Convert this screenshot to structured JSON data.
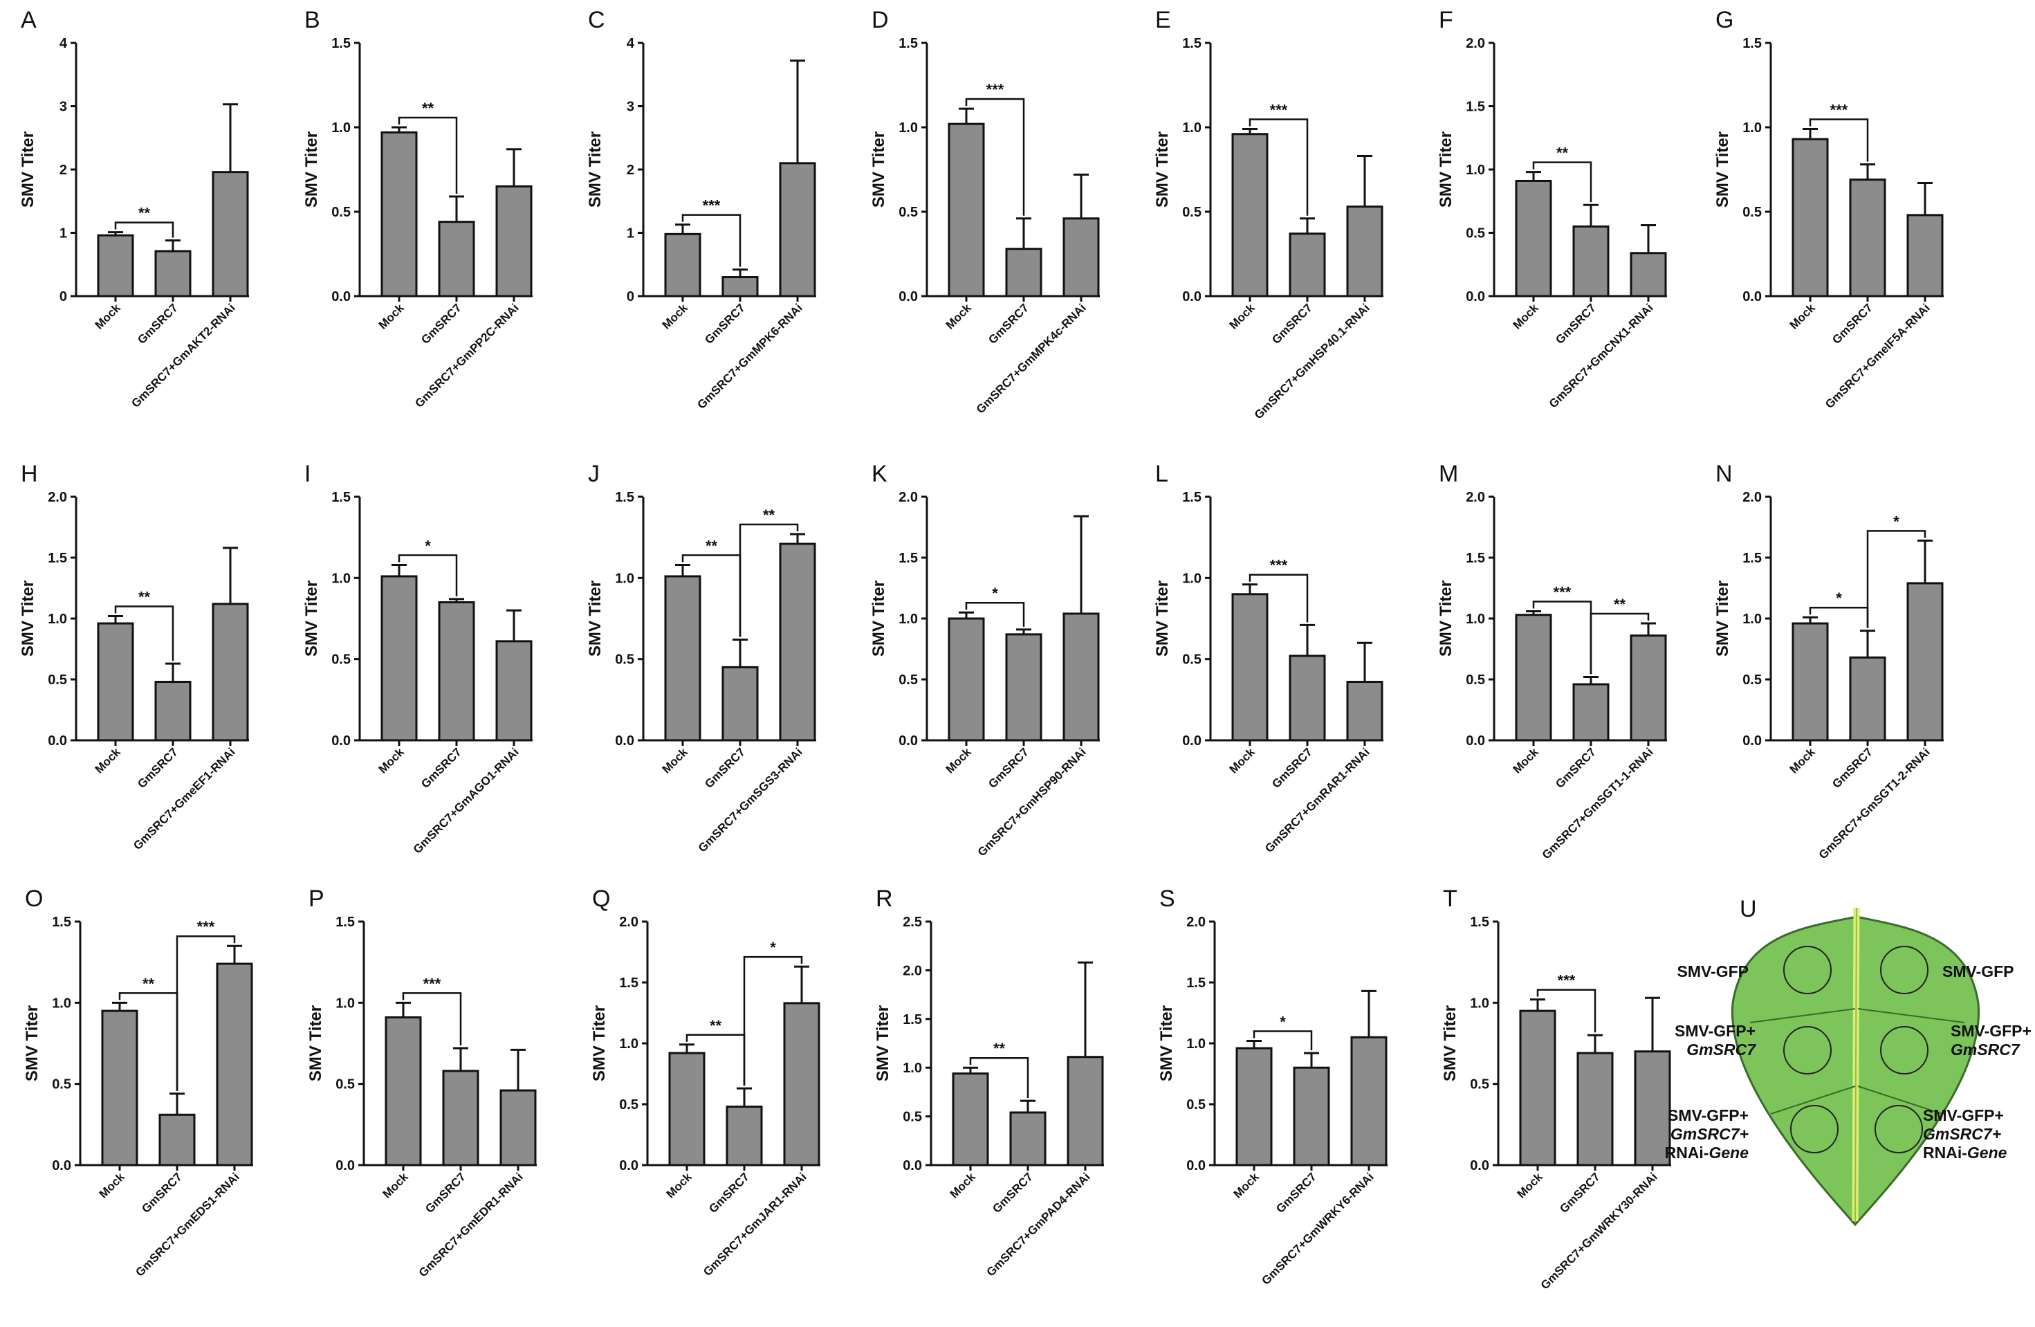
{
  "figure": {
    "bar_color": "#8c8c8c",
    "leaf_color": "#7dc45a",
    "leaf_vein_color": "#d8f070",
    "leaf_outline_color": "#3a6b2a"
  },
  "chart_data": [
    {
      "panel": "A",
      "type": "bar",
      "ylabel": "SMV Titer",
      "ylim": [
        0,
        4
      ],
      "yticks": [
        "0",
        "1",
        "2",
        "3",
        "4"
      ],
      "categories": [
        "Mock",
        "GmSRC7",
        "GmSRC7+GmAKT2-RNAi"
      ],
      "values": [
        0.96,
        0.71,
        1.96
      ],
      "errors": [
        0.05,
        0.17,
        1.07
      ],
      "significance": [
        {
          "from": 0,
          "to": 1,
          "label": "**"
        }
      ]
    },
    {
      "panel": "B",
      "type": "bar",
      "ylabel": "SMV Titer",
      "ylim": [
        0,
        1.5
      ],
      "yticks": [
        "0.0",
        "0.5",
        "1.0",
        "1.5"
      ],
      "categories": [
        "Mock",
        "GmSRC7",
        "GmSRC7+GmPP2C-RNAi"
      ],
      "values": [
        0.97,
        0.44,
        0.65
      ],
      "errors": [
        0.03,
        0.15,
        0.22
      ],
      "significance": [
        {
          "from": 0,
          "to": 1,
          "label": "**"
        }
      ]
    },
    {
      "panel": "C",
      "type": "bar",
      "ylabel": "SMV Titer",
      "ylim": [
        0,
        4
      ],
      "yticks": [
        "0",
        "1",
        "2",
        "3",
        "4"
      ],
      "categories": [
        "Mock",
        "GmSRC7",
        "GmSRC7+GmMPK6-RNAi"
      ],
      "values": [
        0.98,
        0.3,
        2.1
      ],
      "errors": [
        0.15,
        0.12,
        1.62
      ],
      "significance": [
        {
          "from": 0,
          "to": 1,
          "label": "***"
        }
      ]
    },
    {
      "panel": "D",
      "type": "bar",
      "ylabel": "SMV Titer",
      "ylim": [
        0,
        1.5
      ],
      "yticks": [
        "0.0",
        "0.5",
        "1.0",
        "1.5"
      ],
      "categories": [
        "Mock",
        "GmSRC7",
        "GmSRC7+GmMPK4c-RNAi"
      ],
      "values": [
        1.02,
        0.28,
        0.46
      ],
      "errors": [
        0.09,
        0.18,
        0.26
      ],
      "significance": [
        {
          "from": 0,
          "to": 1,
          "label": "***"
        }
      ]
    },
    {
      "panel": "E",
      "type": "bar",
      "ylabel": "SMV Titer",
      "ylim": [
        0,
        1.5
      ],
      "yticks": [
        "0.0",
        "0.5",
        "1.0",
        "1.5"
      ],
      "categories": [
        "Mock",
        "GmSRC7",
        "GmSRC7+GmHSP40.1-RNAi"
      ],
      "values": [
        0.96,
        0.37,
        0.53
      ],
      "errors": [
        0.03,
        0.09,
        0.3
      ],
      "significance": [
        {
          "from": 0,
          "to": 1,
          "label": "***"
        }
      ]
    },
    {
      "panel": "F",
      "type": "bar",
      "ylabel": "SMV Titer",
      "ylim": [
        0,
        2
      ],
      "yticks": [
        "0.0",
        "0.5",
        "1.0",
        "1.5",
        "2.0"
      ],
      "categories": [
        "Mock",
        "GmSRC7",
        "GmSRC7+GmCNX1-RNAi"
      ],
      "values": [
        0.91,
        0.55,
        0.34
      ],
      "errors": [
        0.07,
        0.17,
        0.22
      ],
      "significance": [
        {
          "from": 0,
          "to": 1,
          "label": "**"
        }
      ]
    },
    {
      "panel": "G",
      "type": "bar",
      "ylabel": "SMV Titer",
      "ylim": [
        0,
        1.5
      ],
      "yticks": [
        "0.0",
        "0.5",
        "1.0",
        "1.5"
      ],
      "categories": [
        "Mock",
        "GmSRC7",
        "GmSRC7+GmeIF5A-RNAi"
      ],
      "values": [
        0.93,
        0.69,
        0.48
      ],
      "errors": [
        0.06,
        0.09,
        0.19
      ],
      "significance": [
        {
          "from": 0,
          "to": 1,
          "label": "***"
        }
      ]
    },
    {
      "panel": "H",
      "type": "bar",
      "ylabel": "SMV Titer",
      "ylim": [
        0,
        2
      ],
      "yticks": [
        "0.0",
        "0.5",
        "1.0",
        "1.5",
        "2.0"
      ],
      "categories": [
        "Mock",
        "GmSRC7",
        "GmSRC7+GmeEF1-RNAi"
      ],
      "values": [
        0.96,
        0.48,
        1.12
      ],
      "errors": [
        0.06,
        0.15,
        0.46
      ],
      "significance": [
        {
          "from": 0,
          "to": 1,
          "label": "**"
        }
      ]
    },
    {
      "panel": "I",
      "type": "bar",
      "ylabel": "SMV Titer",
      "ylim": [
        0,
        1.5
      ],
      "yticks": [
        "0.0",
        "0.5",
        "1.0",
        "1.5"
      ],
      "categories": [
        "Mock",
        "GmSRC7",
        "GmSRC7+GmAGO1-RNAi"
      ],
      "values": [
        1.01,
        0.85,
        0.61
      ],
      "errors": [
        0.07,
        0.02,
        0.19
      ],
      "significance": [
        {
          "from": 0,
          "to": 1,
          "label": "*"
        }
      ]
    },
    {
      "panel": "J",
      "type": "bar",
      "ylabel": "SMV Titer",
      "ylim": [
        0,
        1.5
      ],
      "yticks": [
        "0.0",
        "0.5",
        "1.0",
        "1.5"
      ],
      "categories": [
        "Mock",
        "GmSRC7",
        "GmSRC7+GmSGS3-RNAi"
      ],
      "values": [
        1.01,
        0.45,
        1.21
      ],
      "errors": [
        0.07,
        0.17,
        0.06
      ],
      "significance": [
        {
          "from": 0,
          "to": 1,
          "label": "**"
        },
        {
          "from": 1,
          "to": 2,
          "label": "**"
        }
      ]
    },
    {
      "panel": "K",
      "type": "bar",
      "ylabel": "SMV Titer",
      "ylim": [
        0,
        2
      ],
      "yticks": [
        "0.0",
        "0.5",
        "1.0",
        "1.5",
        "2.0"
      ],
      "categories": [
        "Mock",
        "GmSRC7",
        "GmSRC7+GmHSP90-RNAi"
      ],
      "values": [
        1.0,
        0.87,
        1.04
      ],
      "errors": [
        0.05,
        0.04,
        0.8
      ],
      "significance": [
        {
          "from": 0,
          "to": 1,
          "label": "*"
        }
      ]
    },
    {
      "panel": "L",
      "type": "bar",
      "ylabel": "SMV Titer",
      "ylim": [
        0,
        1.5
      ],
      "yticks": [
        "0.0",
        "0.5",
        "1.0",
        "1.5"
      ],
      "categories": [
        "Mock",
        "GmSRC7",
        "GmSRC7+GmRAR1-RNAi"
      ],
      "values": [
        0.9,
        0.52,
        0.36
      ],
      "errors": [
        0.06,
        0.19,
        0.24
      ],
      "significance": [
        {
          "from": 0,
          "to": 1,
          "label": "***"
        }
      ]
    },
    {
      "panel": "M",
      "type": "bar",
      "ylabel": "SMV Titer",
      "ylim": [
        0,
        2
      ],
      "yticks": [
        "0.0",
        "0.5",
        "1.0",
        "1.5",
        "2.0"
      ],
      "categories": [
        "Mock",
        "GmSRC7",
        "GmSRC7+GmSGT1-1-RNAi"
      ],
      "values": [
        1.03,
        0.46,
        0.86
      ],
      "errors": [
        0.03,
        0.06,
        0.1
      ],
      "significance": [
        {
          "from": 0,
          "to": 1,
          "label": "***"
        },
        {
          "from": 1,
          "to": 2,
          "label": "**"
        }
      ]
    },
    {
      "panel": "N",
      "type": "bar",
      "ylabel": "SMV Titer",
      "ylim": [
        0,
        2
      ],
      "yticks": [
        "0.0",
        "0.5",
        "1.0",
        "1.5",
        "2.0"
      ],
      "categories": [
        "Mock",
        "GmSRC7",
        "GmSRC7+GmSGT1-2-RNAi"
      ],
      "values": [
        0.96,
        0.68,
        1.29
      ],
      "errors": [
        0.05,
        0.22,
        0.35
      ],
      "significance": [
        {
          "from": 0,
          "to": 1,
          "label": "*"
        },
        {
          "from": 1,
          "to": 2,
          "label": "*"
        }
      ]
    },
    {
      "panel": "O",
      "type": "bar",
      "ylabel": "SMV Titer",
      "ylim": [
        0,
        1.5
      ],
      "yticks": [
        "0.0",
        "0.5",
        "1.0",
        "1.5"
      ],
      "categories": [
        "Mock",
        "GmSRC7",
        "GmSRC7+GmEDS1-RNAi"
      ],
      "values": [
        0.95,
        0.31,
        1.24
      ],
      "errors": [
        0.05,
        0.13,
        0.11
      ],
      "significance": [
        {
          "from": 0,
          "to": 1,
          "label": "**"
        },
        {
          "from": 1,
          "to": 2,
          "label": "***"
        }
      ]
    },
    {
      "panel": "P",
      "type": "bar",
      "ylabel": "SMV Titer",
      "ylim": [
        0,
        1.5
      ],
      "yticks": [
        "0.0",
        "0.5",
        "1.0",
        "1.5"
      ],
      "categories": [
        "Mock",
        "GmSRC7",
        "GmSRC7+GmEDR1-RNAi"
      ],
      "values": [
        0.91,
        0.58,
        0.46
      ],
      "errors": [
        0.09,
        0.14,
        0.25
      ],
      "significance": [
        {
          "from": 0,
          "to": 1,
          "label": "***"
        }
      ]
    },
    {
      "panel": "Q",
      "type": "bar",
      "ylabel": "SMV Titer",
      "ylim": [
        0,
        2
      ],
      "yticks": [
        "0.0",
        "0.5",
        "1.0",
        "1.5",
        "2.0"
      ],
      "categories": [
        "Mock",
        "GmSRC7",
        "GmSRC7+GmJAR1-RNAi"
      ],
      "values": [
        0.92,
        0.48,
        1.33
      ],
      "errors": [
        0.07,
        0.15,
        0.3
      ],
      "significance": [
        {
          "from": 0,
          "to": 1,
          "label": "**"
        },
        {
          "from": 1,
          "to": 2,
          "label": "*"
        }
      ]
    },
    {
      "panel": "R",
      "type": "bar",
      "ylabel": "SMV Titer",
      "ylim": [
        0,
        2.5
      ],
      "yticks": [
        "0.0",
        "0.5",
        "1.0",
        "1.5",
        "2.0",
        "2.5"
      ],
      "categories": [
        "Mock",
        "GmSRC7",
        "GmSRC7+GmPAD4-RNAi"
      ],
      "values": [
        0.94,
        0.54,
        1.11
      ],
      "errors": [
        0.06,
        0.12,
        0.97
      ],
      "significance": [
        {
          "from": 0,
          "to": 1,
          "label": "**"
        }
      ]
    },
    {
      "panel": "S",
      "type": "bar",
      "ylabel": "SMV Titer",
      "ylim": [
        0,
        2
      ],
      "yticks": [
        "0.0",
        "0.5",
        "1.0",
        "1.5",
        "2.0"
      ],
      "categories": [
        "Mock",
        "GmSRC7",
        "GmSRC7+GmWRKY6-RNAi"
      ],
      "values": [
        0.96,
        0.8,
        1.05
      ],
      "errors": [
        0.06,
        0.12,
        0.38
      ],
      "significance": [
        {
          "from": 0,
          "to": 1,
          "label": "*"
        }
      ]
    },
    {
      "panel": "T",
      "type": "bar",
      "ylabel": "SMV Titer",
      "ylim": [
        0,
        1.5
      ],
      "yticks": [
        "0.0",
        "0.5",
        "1.0",
        "1.5"
      ],
      "categories": [
        "Mock",
        "GmSRC7",
        "GmSRC7+GmWRKY30-RNAi"
      ],
      "values": [
        0.95,
        0.69,
        0.7
      ],
      "errors": [
        0.07,
        0.11,
        0.33
      ],
      "significance": [
        {
          "from": 0,
          "to": 1,
          "label": "***"
        }
      ]
    }
  ],
  "leaf_panel": {
    "letter": "U",
    "labels": [
      {
        "lines": [
          {
            "text": "SMV-GFP",
            "italic": false
          }
        ],
        "anchor": "end"
      },
      {
        "lines": [
          {
            "text": "SMV-GFP",
            "italic": false
          }
        ],
        "anchor": "start"
      },
      {
        "lines": [
          {
            "text": "SMV-GFP+",
            "italic": false
          },
          {
            "text": "GmSRC7",
            "italic": true
          }
        ],
        "anchor": "end"
      },
      {
        "lines": [
          {
            "text": "SMV-GFP+",
            "italic": false
          },
          {
            "text": "GmSRC7",
            "italic": true
          }
        ],
        "anchor": "start"
      },
      {
        "lines": [
          {
            "text": "SMV-GFP+",
            "italic": false
          },
          {
            "text": "GmSRC7+",
            "italic": true
          },
          {
            "text": "RNAi-",
            "italic": false,
            "tail": "Gene"
          }
        ],
        "anchor": "end"
      },
      {
        "lines": [
          {
            "text": "SMV-GFP+",
            "italic": false
          },
          {
            "text": "GmSRC7+",
            "italic": true
          },
          {
            "text": "RNAi-",
            "italic": false,
            "tail": "Gene"
          }
        ],
        "anchor": "start"
      }
    ]
  }
}
